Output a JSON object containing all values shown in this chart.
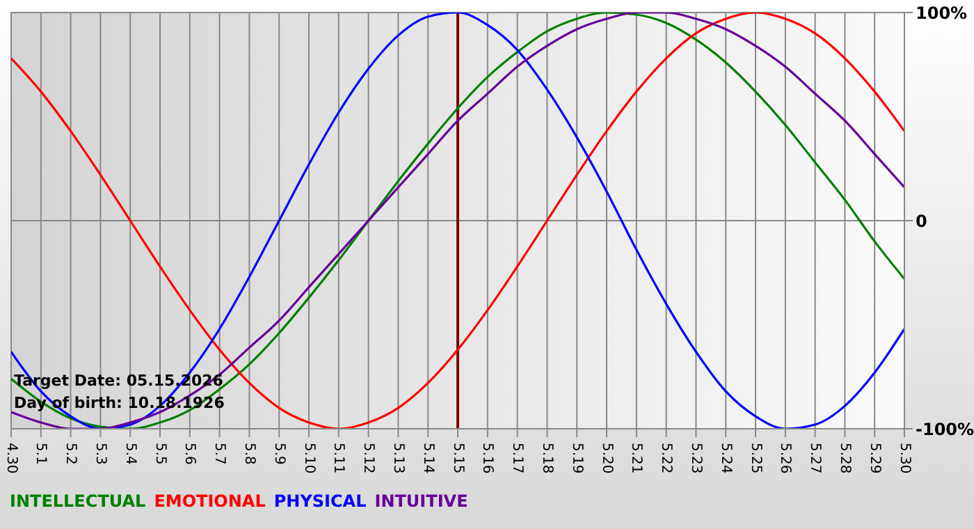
{
  "chart_data": {
    "type": "line",
    "categories": [
      "4.30",
      "5.1",
      "5.2",
      "5.3",
      "5.4",
      "5.5",
      "5.6",
      "5.7",
      "5.8",
      "5.9",
      "5.10",
      "5.11",
      "5.12",
      "5.13",
      "5.14",
      "5.15",
      "5.16",
      "5.17",
      "5.18",
      "5.19",
      "5.20",
      "5.21",
      "5.22",
      "5.23",
      "5.24",
      "5.25",
      "5.26",
      "5.27",
      "5.28",
      "5.29",
      "5.30"
    ],
    "series": [
      {
        "name": "INTELLECTUAL",
        "color": "#008000",
        "values": [
          -76,
          -87,
          -95,
          -99,
          -100,
          -97,
          -91,
          -81,
          -69,
          -54,
          -37,
          -19,
          0,
          19,
          37,
          54,
          69,
          81,
          91,
          97,
          100,
          99,
          95,
          87,
          76,
          62,
          46,
          28,
          10,
          -10,
          -28
        ]
      },
      {
        "name": "EMOTIONAL",
        "color": "#ff0000",
        "values": [
          78,
          62,
          43,
          22,
          0,
          -22,
          -43,
          -62,
          -78,
          -90,
          -97,
          -100,
          -97,
          -90,
          -78,
          -62,
          -43,
          -22,
          0,
          22,
          43,
          62,
          78,
          90,
          97,
          100,
          97,
          90,
          78,
          62,
          43
        ]
      },
      {
        "name": "PHYSICAL",
        "color": "#0000ff",
        "values": [
          -63,
          -82,
          -94,
          -100,
          -98,
          -89,
          -73,
          -52,
          -27,
          0,
          27,
          52,
          73,
          89,
          98,
          100,
          94,
          82,
          63,
          40,
          14,
          -14,
          -40,
          -63,
          -82,
          -94,
          -100,
          -98,
          -89,
          -73,
          -52
        ]
      },
      {
        "name": "INTUITIVE",
        "color": "#660099",
        "values": [
          -92,
          -97,
          -100,
          -100,
          -97,
          -92,
          -84,
          -74,
          -61,
          -48,
          -32,
          -16,
          0,
          16,
          32,
          48,
          61,
          74,
          84,
          92,
          97,
          100,
          100,
          97,
          92,
          84,
          74,
          61,
          48,
          32,
          16
        ]
      }
    ],
    "ylim": [
      -100,
      100
    ],
    "yticks": [
      {
        "value": -100,
        "label": "-100%"
      },
      0,
      {
        "value": 100,
        "label": "100%"
      }
    ],
    "ref_lines": [
      {
        "axis": "x",
        "value": "5.15",
        "color": "#800000"
      }
    ],
    "annotations": [
      "Target Date: 05.15.2026",
      "Day of birth: 10.18.1926"
    ],
    "grid": true,
    "legend": "bottom",
    "marker": "none",
    "line_style": "solid"
  }
}
